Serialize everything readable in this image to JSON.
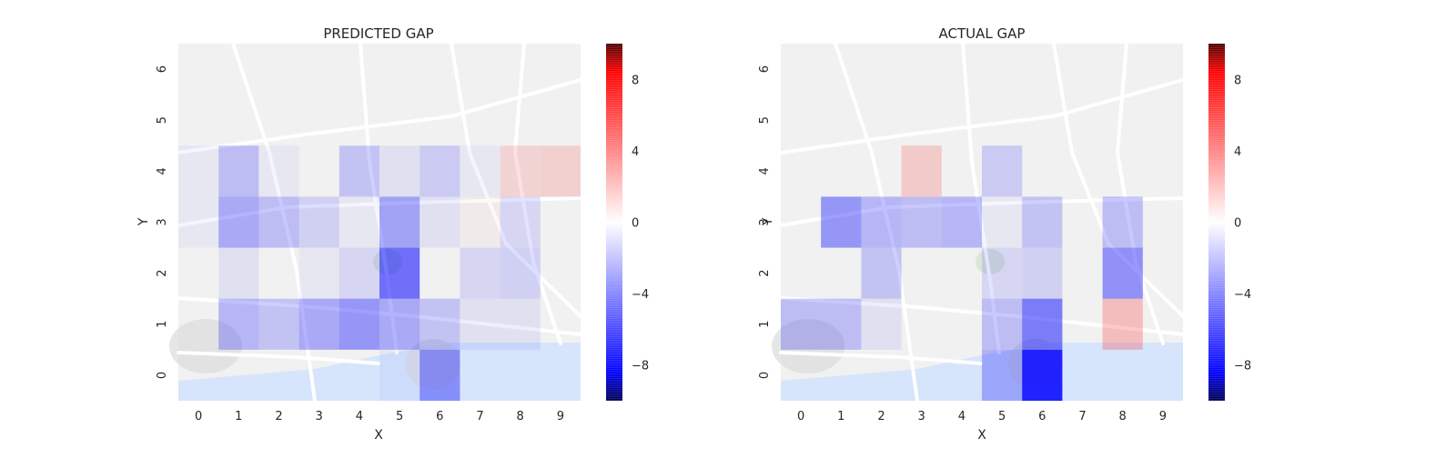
{
  "chart_data": [
    {
      "type": "heatmap",
      "title": "PREDICTED GAP",
      "xlabel": "X",
      "ylabel": "Y",
      "x_ticks": [
        "0",
        "1",
        "2",
        "3",
        "4",
        "5",
        "6",
        "7",
        "8",
        "9"
      ],
      "y_ticks": [
        "0",
        "1",
        "2",
        "3",
        "4",
        "5",
        "6"
      ],
      "background": "street map",
      "grid": false,
      "colorbar": {
        "range": [
          -10,
          10
        ],
        "ticks": [
          {
            "value": 8,
            "label": "8"
          },
          {
            "value": 4,
            "label": "4"
          },
          {
            "value": 0,
            "label": "0"
          },
          {
            "value": -4,
            "label": "−4"
          },
          {
            "value": -8,
            "label": "−8"
          }
        ],
        "colors": {
          "low": "#0000ff",
          "mid": "#ffffff",
          "high": "#ff0000"
        }
      },
      "cells": [
        {
          "x": 0,
          "y": 4,
          "value": -0.3
        },
        {
          "x": 1,
          "y": 4,
          "value": -1.6
        },
        {
          "x": 2,
          "y": 4,
          "value": -0.3
        },
        {
          "x": 3,
          "y": 4,
          "value": 0.0
        },
        {
          "x": 4,
          "y": 4,
          "value": -1.4
        },
        {
          "x": 5,
          "y": 4,
          "value": -0.5
        },
        {
          "x": 6,
          "y": 4,
          "value": -1.2
        },
        {
          "x": 7,
          "y": 4,
          "value": -0.3
        },
        {
          "x": 8,
          "y": 4,
          "value": 0.9
        },
        {
          "x": 9,
          "y": 4,
          "value": 1.0
        },
        {
          "x": 0,
          "y": 3,
          "value": -0.3
        },
        {
          "x": 1,
          "y": 3,
          "value": -2.2
        },
        {
          "x": 2,
          "y": 3,
          "value": -1.6
        },
        {
          "x": 3,
          "y": 3,
          "value": -1.0
        },
        {
          "x": 4,
          "y": 3,
          "value": -0.3
        },
        {
          "x": 5,
          "y": 3,
          "value": -2.4
        },
        {
          "x": 6,
          "y": 3,
          "value": -0.5
        },
        {
          "x": 7,
          "y": 3,
          "value": 0.2
        },
        {
          "x": 8,
          "y": 3,
          "value": -0.8
        },
        {
          "x": 9,
          "y": 3,
          "value": 0.0
        },
        {
          "x": 0,
          "y": 2,
          "value": 0.0
        },
        {
          "x": 1,
          "y": 2,
          "value": -0.5
        },
        {
          "x": 2,
          "y": 2,
          "value": 0.0
        },
        {
          "x": 3,
          "y": 2,
          "value": -0.3
        },
        {
          "x": 4,
          "y": 2,
          "value": -0.8
        },
        {
          "x": 5,
          "y": 2,
          "value": -4.0
        },
        {
          "x": 6,
          "y": 2,
          "value": 0.0
        },
        {
          "x": 7,
          "y": 2,
          "value": -0.8
        },
        {
          "x": 8,
          "y": 2,
          "value": -1.0
        },
        {
          "x": 9,
          "y": 2,
          "value": 0.0
        },
        {
          "x": 0,
          "y": 1,
          "value": 0.0
        },
        {
          "x": 1,
          "y": 1,
          "value": -1.8
        },
        {
          "x": 2,
          "y": 1,
          "value": -1.4
        },
        {
          "x": 3,
          "y": 1,
          "value": -2.2
        },
        {
          "x": 4,
          "y": 1,
          "value": -2.8
        },
        {
          "x": 5,
          "y": 1,
          "value": -2.2
        },
        {
          "x": 6,
          "y": 1,
          "value": -1.4
        },
        {
          "x": 7,
          "y": 1,
          "value": -0.5
        },
        {
          "x": 8,
          "y": 1,
          "value": -0.5
        },
        {
          "x": 9,
          "y": 1,
          "value": 0.0
        },
        {
          "x": 5,
          "y": 0,
          "value": -0.3
        },
        {
          "x": 6,
          "y": 0,
          "value": -2.8
        }
      ]
    },
    {
      "type": "heatmap",
      "title": "ACTUAL GAP",
      "xlabel": "X",
      "ylabel": "Y",
      "x_ticks": [
        "0",
        "1",
        "2",
        "3",
        "4",
        "5",
        "6",
        "7",
        "8",
        "9"
      ],
      "y_ticks": [
        "0",
        "1",
        "2",
        "3",
        "4",
        "5",
        "6"
      ],
      "background": "street map",
      "grid": false,
      "colorbar": {
        "range": [
          -10,
          10
        ],
        "ticks": [
          {
            "value": 8,
            "label": "8"
          },
          {
            "value": 4,
            "label": "4"
          },
          {
            "value": 0,
            "label": "0"
          },
          {
            "value": -4,
            "label": "−4"
          },
          {
            "value": -8,
            "label": "−8"
          }
        ],
        "colors": {
          "low": "#0000ff",
          "mid": "#ffffff",
          "high": "#ff0000"
        }
      },
      "cells": [
        {
          "x": 3,
          "y": 4,
          "value": 1.2
        },
        {
          "x": 5,
          "y": 4,
          "value": -1.2
        },
        {
          "x": 0,
          "y": 3,
          "value": 0.0
        },
        {
          "x": 1,
          "y": 3,
          "value": -2.8
        },
        {
          "x": 2,
          "y": 3,
          "value": -1.8
        },
        {
          "x": 3,
          "y": 3,
          "value": -1.6
        },
        {
          "x": 4,
          "y": 3,
          "value": -1.8
        },
        {
          "x": 5,
          "y": 3,
          "value": -0.3
        },
        {
          "x": 6,
          "y": 3,
          "value": -1.4
        },
        {
          "x": 7,
          "y": 3,
          "value": 0.0
        },
        {
          "x": 8,
          "y": 3,
          "value": -1.6
        },
        {
          "x": 9,
          "y": 3,
          "value": 0.0
        },
        {
          "x": 0,
          "y": 2,
          "value": 0.0
        },
        {
          "x": 1,
          "y": 2,
          "value": 0.0
        },
        {
          "x": 2,
          "y": 2,
          "value": -1.4
        },
        {
          "x": 3,
          "y": 2,
          "value": 0.0
        },
        {
          "x": 4,
          "y": 2,
          "value": 0.0
        },
        {
          "x": 5,
          "y": 2,
          "value": -0.8
        },
        {
          "x": 6,
          "y": 2,
          "value": -1.0
        },
        {
          "x": 7,
          "y": 2,
          "value": 0.0
        },
        {
          "x": 8,
          "y": 2,
          "value": -3.0
        },
        {
          "x": 9,
          "y": 2,
          "value": 0.0
        },
        {
          "x": 0,
          "y": 1,
          "value": -1.6
        },
        {
          "x": 1,
          "y": 1,
          "value": -1.6
        },
        {
          "x": 2,
          "y": 1,
          "value": -0.5
        },
        {
          "x": 3,
          "y": 1,
          "value": 0.0
        },
        {
          "x": 4,
          "y": 1,
          "value": 0.0
        },
        {
          "x": 5,
          "y": 1,
          "value": -1.6
        },
        {
          "x": 6,
          "y": 1,
          "value": -3.6
        },
        {
          "x": 7,
          "y": 1,
          "value": 0.0
        },
        {
          "x": 8,
          "y": 1,
          "value": 1.6
        },
        {
          "x": 9,
          "y": 1,
          "value": 0.0
        },
        {
          "x": 5,
          "y": 0,
          "value": -2.0
        },
        {
          "x": 6,
          "y": 0,
          "value": -6.5
        }
      ]
    }
  ]
}
